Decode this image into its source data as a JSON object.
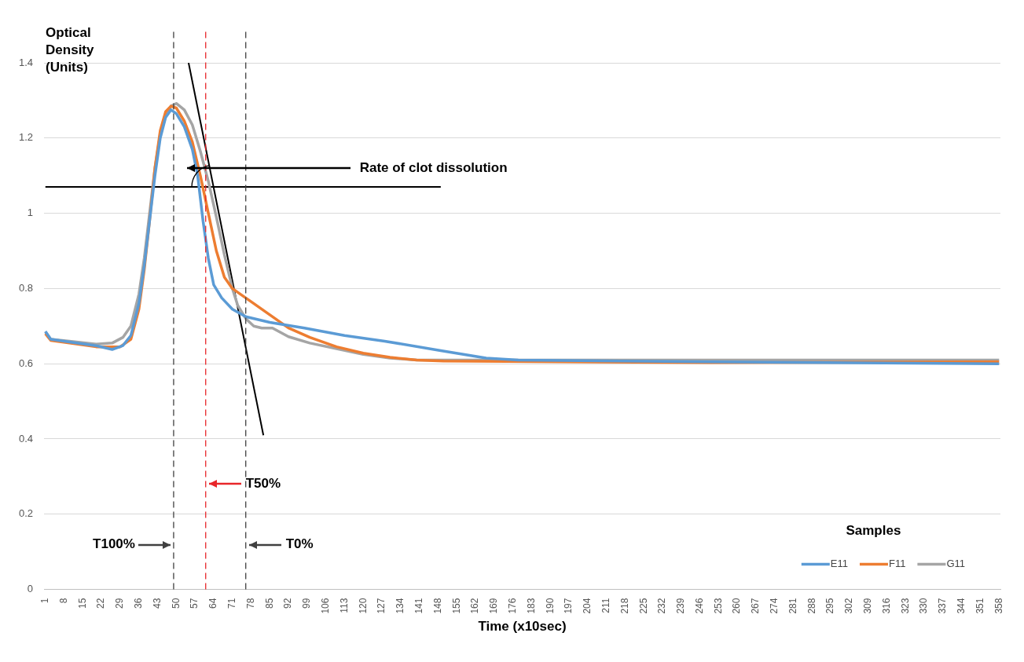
{
  "chart_data": {
    "type": "line",
    "xlabel": "Time (x10sec)",
    "ylabel": "Optical Density (Units)",
    "legend_title": "Samples",
    "legend": "bottom right",
    "grid": "y",
    "marker": "none",
    "line_style": "solid",
    "xlim": [
      0.5,
      358.5
    ],
    "xticks": [
      1,
      8,
      15,
      22,
      29,
      36,
      43,
      50,
      57,
      64,
      71,
      78,
      85,
      92,
      99,
      106,
      113,
      120,
      127,
      134,
      141,
      148,
      155,
      162,
      169,
      176,
      183,
      190,
      197,
      204,
      211,
      218,
      225,
      232,
      239,
      246,
      253,
      260,
      267,
      274,
      281,
      288,
      295,
      302,
      309,
      316,
      323,
      330,
      337,
      344,
      351,
      358
    ],
    "ylim": [
      0,
      1.4
    ],
    "yticks": [
      0,
      0.2,
      0.4,
      0.6,
      0.8,
      1,
      1.2,
      1.4
    ],
    "series": [
      {
        "name": "E11",
        "color": "#5b9bd5",
        "x": [
          1,
          3,
          10,
          20,
          26,
          30,
          33,
          36,
          38,
          40,
          42,
          44,
          46,
          48,
          50,
          53,
          56,
          58,
          60,
          62,
          64,
          67,
          71,
          76,
          85,
          98,
          113,
          128,
          149,
          166,
          178,
          250,
          358
        ],
        "values": [
          0.686,
          0.665,
          0.658,
          0.648,
          0.638,
          0.648,
          0.675,
          0.76,
          0.86,
          0.98,
          1.1,
          1.2,
          1.255,
          1.275,
          1.265,
          1.23,
          1.17,
          1.1,
          0.98,
          0.88,
          0.81,
          0.775,
          0.745,
          0.725,
          0.71,
          0.695,
          0.675,
          0.66,
          0.635,
          0.615,
          0.61,
          0.605,
          0.6
        ]
      },
      {
        "name": "F11",
        "color": "#ed7d31",
        "x": [
          1,
          3,
          10,
          20,
          29,
          33,
          36,
          38,
          40,
          42,
          44,
          46,
          48,
          50,
          53,
          56,
          59,
          62,
          65,
          68,
          71,
          74,
          78,
          85,
          92,
          100,
          110,
          120,
          130,
          140,
          150,
          250,
          358
        ],
        "values": [
          0.68,
          0.662,
          0.655,
          0.645,
          0.645,
          0.665,
          0.745,
          0.85,
          0.98,
          1.12,
          1.22,
          1.27,
          1.285,
          1.28,
          1.245,
          1.19,
          1.1,
          1.0,
          0.9,
          0.83,
          0.8,
          0.785,
          0.765,
          0.73,
          0.695,
          0.67,
          0.645,
          0.628,
          0.617,
          0.61,
          0.607,
          0.603,
          0.605
        ]
      },
      {
        "name": "G11",
        "color": "#a5a5a5",
        "x": [
          1,
          3,
          10,
          20,
          26,
          30,
          33,
          36,
          38,
          40,
          42,
          44,
          46,
          48,
          50,
          53,
          56,
          59,
          62,
          65,
          68,
          71,
          73,
          76,
          79,
          82,
          86,
          92,
          100,
          110,
          120,
          130,
          140,
          200,
          358
        ],
        "values": [
          0.685,
          0.665,
          0.66,
          0.652,
          0.655,
          0.67,
          0.7,
          0.785,
          0.88,
          1.0,
          1.12,
          1.21,
          1.26,
          1.285,
          1.292,
          1.275,
          1.235,
          1.165,
          1.085,
          0.99,
          0.89,
          0.8,
          0.755,
          0.72,
          0.7,
          0.695,
          0.695,
          0.672,
          0.655,
          0.64,
          0.625,
          0.615,
          0.61,
          0.61,
          0.61
        ]
      },
      {
        "type": "line",
        "color": "#000000",
        "x": [
          54.6,
          82.6
        ],
        "values": [
          1.4,
          0.41
        ]
      },
      {
        "type": "line",
        "color": "#000000",
        "x": [
          1,
          149
        ],
        "values": [
          1.07,
          1.07
        ]
      }
    ],
    "ref_lines": [
      {
        "axis": "x",
        "value": 49,
        "label": "T100%",
        "color": "#404040",
        "line_style": "dashed"
      },
      {
        "axis": "x",
        "value": 61,
        "label": "T50%",
        "color": "#e8262a",
        "line_style": "dashed"
      },
      {
        "axis": "x",
        "value": 76,
        "label": "T0%",
        "color": "#404040",
        "line_style": "dashed"
      }
    ],
    "annotations": [
      "Rate of clot dissolution"
    ]
  }
}
